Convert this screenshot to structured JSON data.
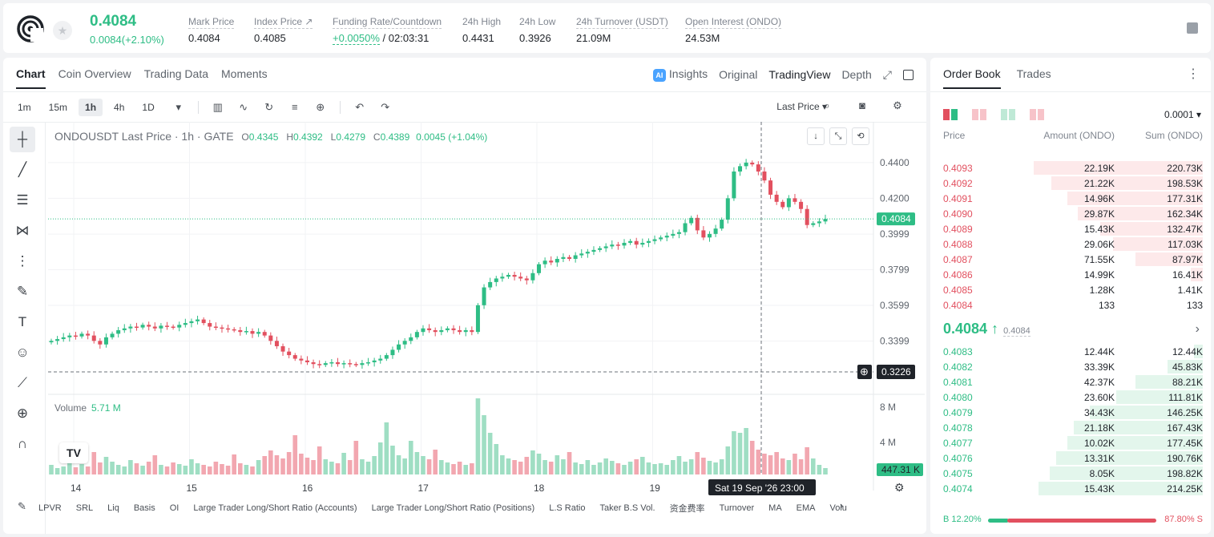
{
  "header": {
    "last_price": "0.4084",
    "change": "0.0084(+2.10%)",
    "stats": [
      {
        "label": "Mark Price",
        "value": "0.4084"
      },
      {
        "label": "Index Price ↗",
        "value": "0.4085"
      },
      {
        "label": "Funding Rate/Countdown",
        "value": "+0.0050%",
        "value2": " / 02:03:31"
      },
      {
        "label": "24h High",
        "value": "0.4431"
      },
      {
        "label": "24h Low",
        "value": "0.3926"
      },
      {
        "label": "24h Turnover (USDT)",
        "value": "21.09M"
      },
      {
        "label": "Open Interest (ONDO)",
        "value": "24.53M"
      }
    ]
  },
  "chart_tabs": {
    "left": [
      "Chart",
      "Coin Overview",
      "Trading Data",
      "Moments"
    ],
    "insights": "Insights",
    "right": [
      "Original",
      "TradingView",
      "Depth"
    ]
  },
  "toolbar": {
    "timeframes": [
      "1m",
      "15m",
      "1h",
      "4h",
      "1D"
    ],
    "price_type": "Last Price ▾"
  },
  "legend": {
    "symbol": "ONDOUSDT Last Price · 1h · GATE",
    "o_label": "O",
    "o": "0.4345",
    "h_label": "H",
    "h": "0.4392",
    "l_label": "L",
    "l": "0.4279",
    "c_label": "C",
    "c": "0.4389",
    "chg": "0.0045 (+1.04%)"
  },
  "volume_legend": {
    "label": "Volume",
    "value": "5.71 M"
  },
  "axis": {
    "price_ticks": [
      "0.4400",
      "0.4200",
      "0.3999",
      "0.3799",
      "0.3599",
      "0.3399"
    ],
    "last_price_tag": "0.4084",
    "cursor_price_tag": "0.3226",
    "vol_ticks": [
      "8 M",
      "4 M"
    ],
    "vol_tag": "447.31 K",
    "date_ticks": [
      "14",
      "15",
      "16",
      "17",
      "18",
      "19"
    ],
    "cursor_time": "Sat 19 Sep '26   23:00"
  },
  "indicators": [
    "LPVR",
    "SRL",
    "Liq",
    "Basis",
    "OI",
    "Large Trader Long/Short Ratio (Accounts)",
    "Large Trader Long/Short Ratio (Positions)",
    "L.S Ratio",
    "Taker B.S Vol.",
    "资金费率",
    "Turnover",
    "MA",
    "EMA",
    "Volu"
  ],
  "colors": {
    "up": "#2ebd85",
    "down": "#e2505f",
    "up_vol": "#9fdec3",
    "down_vol": "#f2a7b0"
  },
  "chart_data": {
    "type": "candlestick",
    "title": "ONDOUSDT Last Price · 1h · GATE",
    "ylim": [
      0.3226,
      0.444
    ],
    "x_categories": [
      "14",
      "15",
      "16",
      "17",
      "18",
      "19"
    ],
    "close_path": [
      0.34,
      0.341,
      0.342,
      0.343,
      0.3425,
      0.344,
      0.343,
      0.34,
      0.338,
      0.342,
      0.344,
      0.346,
      0.347,
      0.348,
      0.3475,
      0.349,
      0.348,
      0.347,
      0.3485,
      0.348,
      0.3475,
      0.349,
      0.35,
      0.351,
      0.352,
      0.35,
      0.348,
      0.3475,
      0.347,
      0.3465,
      0.346,
      0.345,
      0.3455,
      0.344,
      0.345,
      0.343,
      0.34,
      0.337,
      0.334,
      0.332,
      0.33,
      0.329,
      0.328,
      0.327,
      0.3265,
      0.3275,
      0.328,
      0.327,
      0.3275,
      0.327,
      0.3265,
      0.3275,
      0.328,
      0.329,
      0.33,
      0.332,
      0.335,
      0.338,
      0.34,
      0.342,
      0.345,
      0.347,
      0.346,
      0.345,
      0.346,
      0.347,
      0.346,
      0.345,
      0.346,
      0.345,
      0.36,
      0.37,
      0.373,
      0.375,
      0.376,
      0.377,
      0.376,
      0.375,
      0.374,
      0.378,
      0.383,
      0.385,
      0.384,
      0.386,
      0.387,
      0.386,
      0.388,
      0.389,
      0.39,
      0.391,
      0.392,
      0.393,
      0.394,
      0.3935,
      0.395,
      0.396,
      0.394,
      0.395,
      0.396,
      0.397,
      0.398,
      0.399,
      0.4,
      0.401,
      0.406,
      0.409,
      0.402,
      0.398,
      0.4,
      0.403,
      0.408,
      0.42,
      0.435,
      0.438,
      0.44,
      0.439,
      0.435,
      0.43,
      0.422,
      0.418,
      0.415,
      0.42,
      0.418,
      0.414,
      0.405,
      0.406,
      0.407,
      0.4084
    ],
    "volume_path": [
      1.2,
      0.8,
      1.0,
      1.4,
      0.9,
      1.3,
      1.0,
      2.8,
      1.5,
      2.2,
      1.6,
      1.2,
      1.0,
      1.8,
      1.4,
      1.1,
      1.6,
      2.4,
      1.2,
      1.0,
      1.5,
      1.3,
      1.1,
      1.9,
      1.4,
      1.2,
      1.0,
      1.6,
      1.3,
      1.1,
      2.5,
      1.4,
      1.2,
      1.0,
      1.8,
      2.3,
      3.0,
      2.4,
      2.0,
      2.8,
      4.9,
      2.6,
      2.1,
      1.8,
      3.5,
      1.9,
      1.6,
      1.4,
      2.7,
      1.8,
      4.2,
      1.9,
      1.6,
      2.3,
      4.0,
      6.5,
      3.6,
      2.4,
      2.0,
      4.2,
      2.8,
      2.3,
      1.9,
      3.1,
      1.8,
      1.5,
      1.3,
      1.6,
      1.2,
      1.4,
      9.5,
      7.4,
      5.2,
      3.8,
      2.4,
      2.0,
      1.8,
      1.6,
      2.2,
      3.0,
      2.6,
      1.8,
      1.6,
      2.4,
      1.9,
      2.8,
      1.5,
      1.3,
      1.8,
      1.2,
      1.5,
      2.0,
      1.7,
      1.4,
      1.2,
      1.6,
      1.9,
      2.2,
      1.5,
      1.3,
      1.4,
      1.2,
      1.8,
      2.3,
      1.6,
      1.9,
      2.8,
      2.1,
      1.7,
      1.5,
      1.9,
      3.5,
      5.4,
      5.2,
      5.8,
      4.2,
      3.1,
      2.6,
      2.4,
      2.8,
      2.0,
      1.8,
      2.6,
      1.9,
      3.4,
      2.0,
      1.2,
      0.8
    ],
    "volume_unit": "M"
  },
  "order_book": {
    "tabs": [
      "Order Book",
      "Trades"
    ],
    "precision": "0.0001 ▾",
    "headers": {
      "price": "Price",
      "amount": "Amount (ONDO)",
      "sum": "Sum (ONDO)"
    },
    "asks": [
      {
        "p": "0.4093",
        "a": "22.19K",
        "s": "220.73K",
        "depth": 0.96
      },
      {
        "p": "0.4092",
        "a": "21.22K",
        "s": "198.53K",
        "depth": 0.86
      },
      {
        "p": "0.4091",
        "a": "14.96K",
        "s": "177.31K",
        "depth": 0.77
      },
      {
        "p": "0.4090",
        "a": "29.87K",
        "s": "162.34K",
        "depth": 0.71
      },
      {
        "p": "0.4089",
        "a": "15.43K",
        "s": "132.47K",
        "depth": 0.58
      },
      {
        "p": "0.4088",
        "a": "29.06K",
        "s": "117.03K",
        "depth": 0.51
      },
      {
        "p": "0.4087",
        "a": "71.55K",
        "s": "87.97K",
        "depth": 0.38
      },
      {
        "p": "0.4086",
        "a": "14.99K",
        "s": "16.41K",
        "depth": 0.07
      },
      {
        "p": "0.4085",
        "a": "1.28K",
        "s": "1.41K",
        "depth": 0.0
      },
      {
        "p": "0.4084",
        "a": "133",
        "s": "133",
        "depth": 0.0
      }
    ],
    "mid_price": "0.4084 ↑",
    "mark": "0.4084",
    "bids": [
      {
        "p": "0.4083",
        "a": "12.44K",
        "s": "12.44K",
        "depth": 0.05
      },
      {
        "p": "0.4082",
        "a": "33.39K",
        "s": "45.83K",
        "depth": 0.2
      },
      {
        "p": "0.4081",
        "a": "42.37K",
        "s": "88.21K",
        "depth": 0.38
      },
      {
        "p": "0.4080",
        "a": "23.60K",
        "s": "111.81K",
        "depth": 0.49
      },
      {
        "p": "0.4079",
        "a": "34.43K",
        "s": "146.25K",
        "depth": 0.64
      },
      {
        "p": "0.4078",
        "a": "21.18K",
        "s": "167.43K",
        "depth": 0.73
      },
      {
        "p": "0.4077",
        "a": "10.02K",
        "s": "177.45K",
        "depth": 0.77
      },
      {
        "p": "0.4076",
        "a": "13.31K",
        "s": "190.76K",
        "depth": 0.83
      },
      {
        "p": "0.4075",
        "a": "8.05K",
        "s": "198.82K",
        "depth": 0.87
      },
      {
        "p": "0.4074",
        "a": "15.43K",
        "s": "214.25K",
        "depth": 0.93
      }
    ],
    "buy_label": "B 12.20%",
    "sell_label": "87.80% S",
    "buy_ratio": 0.122
  }
}
